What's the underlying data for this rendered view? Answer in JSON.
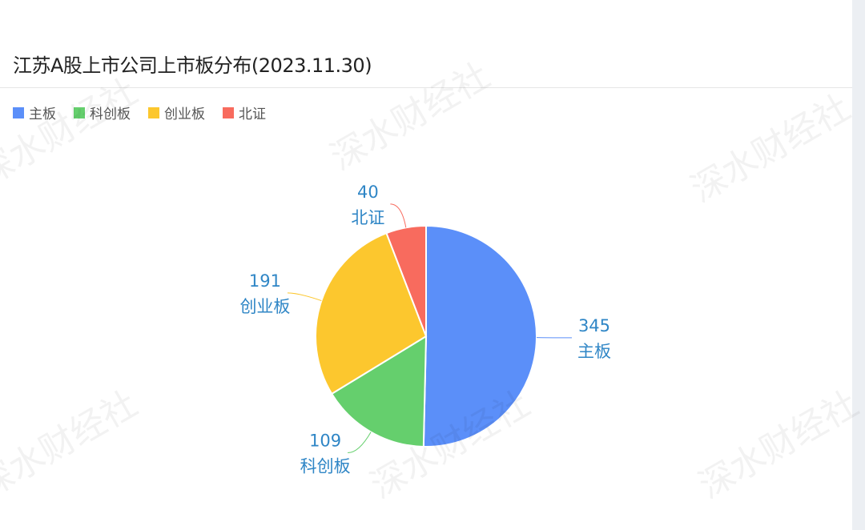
{
  "chart_data": {
    "type": "pie",
    "title": "江苏A股上市公司上市板分布(2023.11.30)",
    "categories": [
      "主板",
      "科创板",
      "创业板",
      "北证"
    ],
    "values": [
      345,
      109,
      191,
      40
    ],
    "colors": [
      "#5b8ff9",
      "#65cf6d",
      "#fcc72e",
      "#f86b5e"
    ],
    "start_angle": "12 o'clock, clockwise",
    "legend_position": "top-left",
    "label_color": "#2f86c6"
  },
  "watermark": "深水财经社"
}
